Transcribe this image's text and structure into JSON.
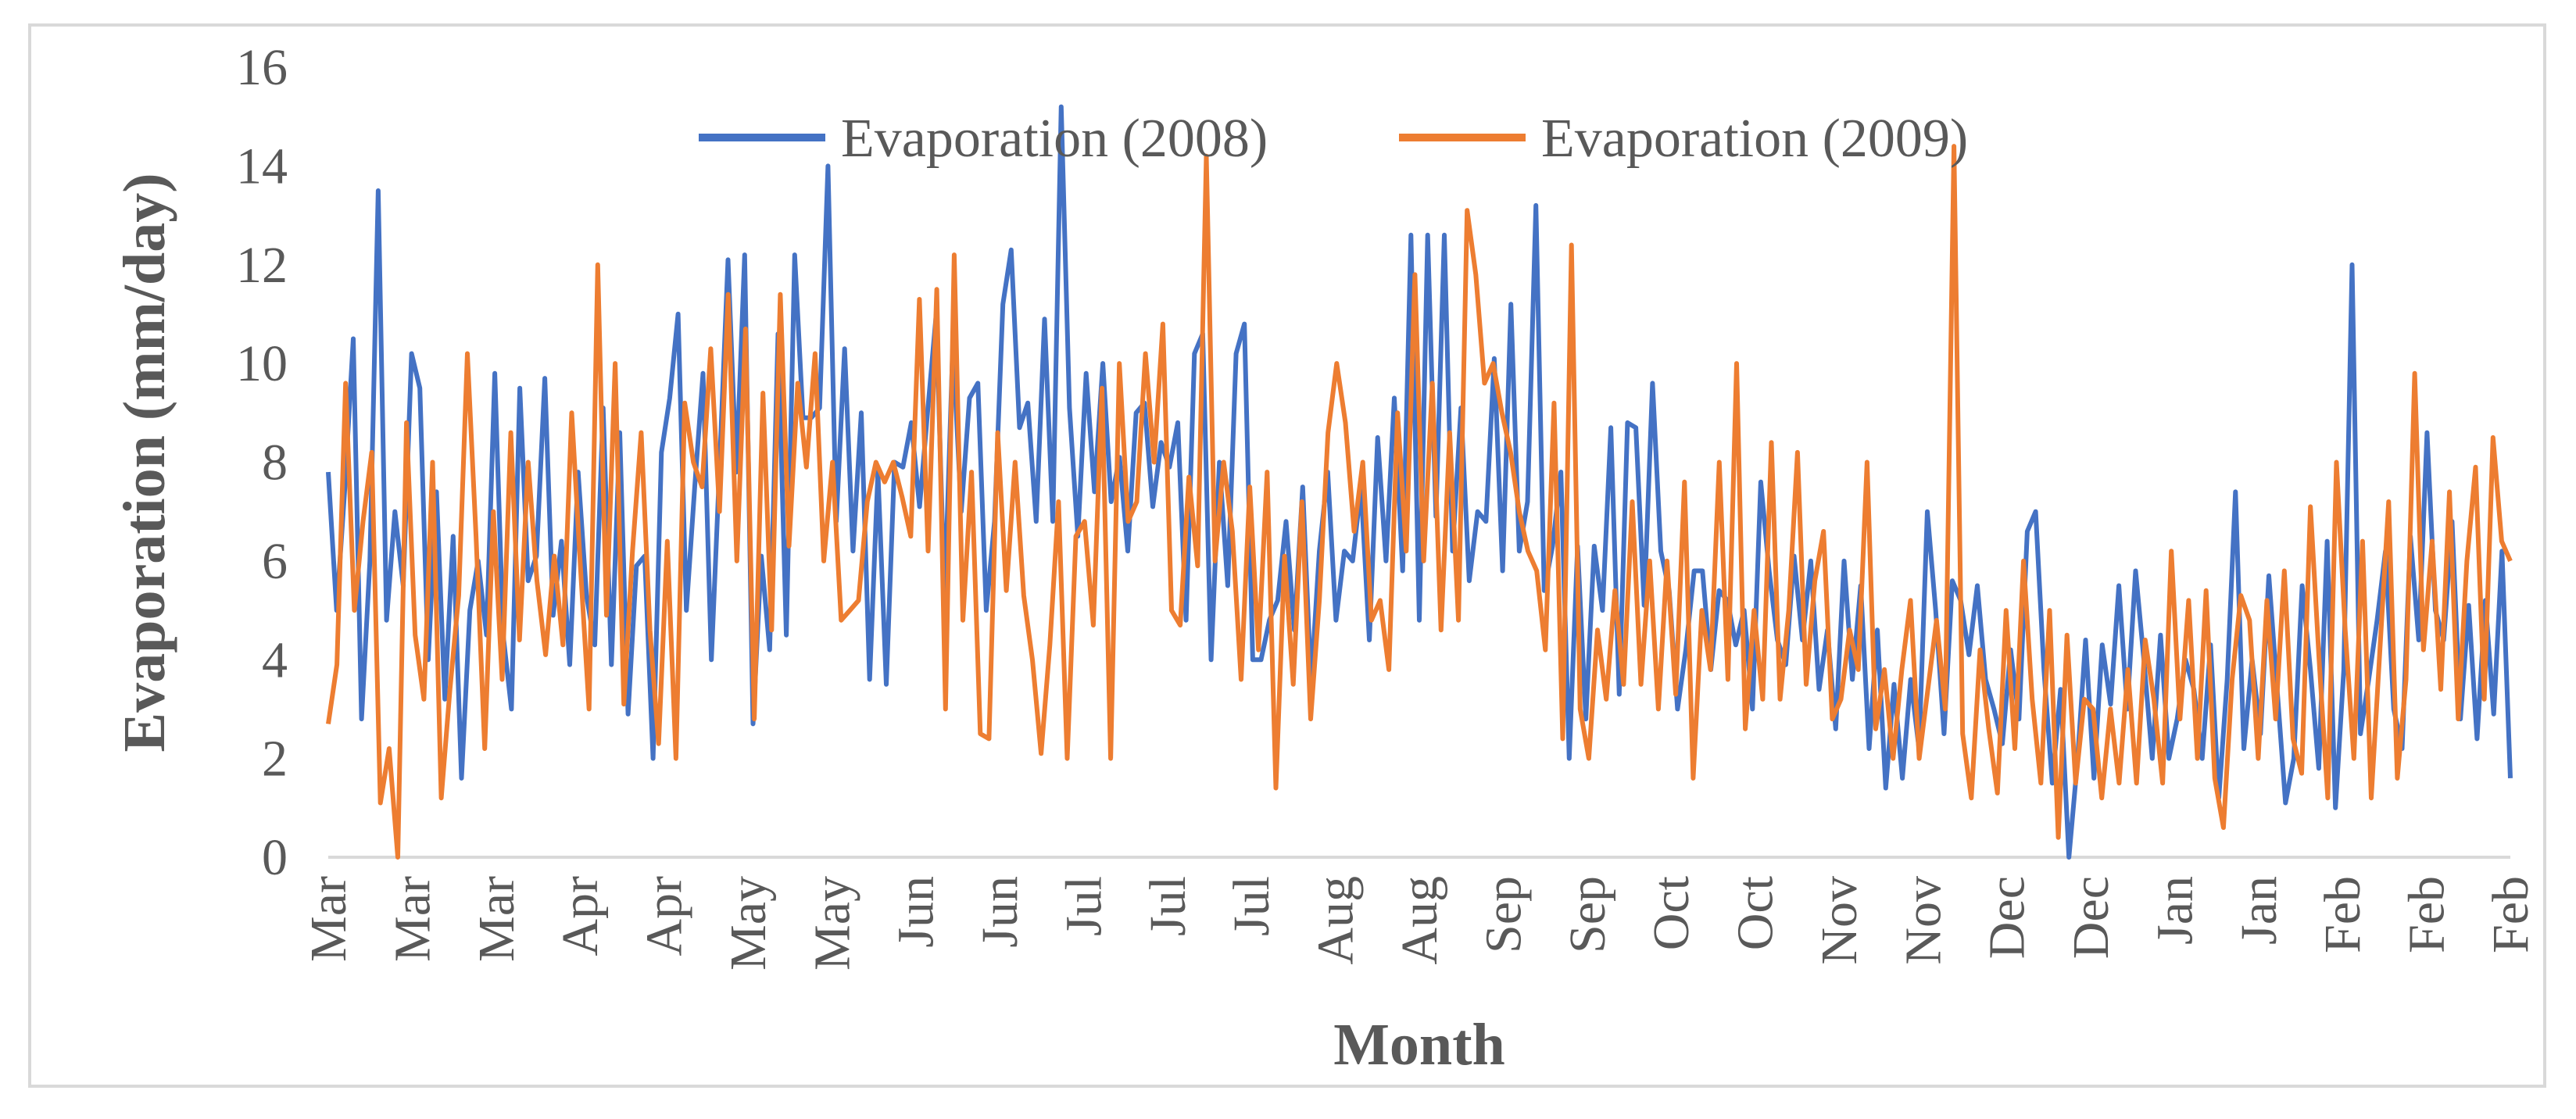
{
  "chart_data": {
    "type": "line",
    "title": "",
    "xlabel": "Month",
    "ylabel": "Evaporation (mm/day)",
    "ylim": [
      0,
      16
    ],
    "yticks": [
      0,
      2,
      4,
      6,
      8,
      10,
      12,
      14,
      16
    ],
    "grid": false,
    "legend_position": "top-center",
    "x_tick_labels": [
      "Mar",
      "Mar",
      "Mar",
      "Apr",
      "Apr",
      "May",
      "May",
      "Jun",
      "Jun",
      "Jul",
      "Jul",
      "Jul",
      "Aug",
      "Aug",
      "Sep",
      "Sep",
      "Oct",
      "Oct",
      "Nov",
      "Nov",
      "Dec",
      "Dec",
      "Jan",
      "Jan",
      "Feb",
      "Feb",
      "Feb"
    ],
    "x_day_range": [
      0,
      365
    ],
    "series": [
      {
        "name": "Evaporation (2008)",
        "color": "#4472c4",
        "values": [
          7.8,
          5.0,
          7.5,
          10.5,
          2.8,
          6.0,
          13.5,
          4.8,
          7.0,
          5.5,
          10.2,
          9.5,
          4.0,
          7.4,
          3.2,
          6.5,
          1.6,
          5.0,
          6.0,
          4.5,
          9.8,
          4.5,
          3.0,
          9.5,
          5.6,
          6.1,
          9.7,
          4.9,
          6.4,
          3.9,
          7.8,
          5.3,
          4.3,
          9.1,
          3.9,
          8.6,
          2.9,
          5.9,
          6.1,
          2.0,
          8.2,
          9.3,
          11.0,
          5.0,
          7.5,
          9.8,
          4.0,
          8.0,
          12.1,
          7.8,
          12.2,
          2.7,
          6.1,
          4.2,
          10.6,
          4.5,
          12.2,
          8.9,
          8.9,
          9.1,
          14.0,
          6.8,
          10.3,
          6.2,
          9.0,
          3.6,
          7.8,
          3.5,
          8.0,
          7.9,
          8.8,
          7.1,
          9.1,
          11.0,
          5.2,
          10.4,
          7.0,
          9.3,
          9.6,
          5.0,
          6.8,
          11.2,
          12.3,
          8.7,
          9.2,
          6.8,
          10.9,
          6.8,
          15.2,
          9.1,
          6.5,
          9.8,
          7.4,
          10.0,
          7.2,
          8.1,
          6.2,
          9.0,
          9.2,
          7.1,
          8.4,
          7.9,
          8.8,
          4.8,
          10.2,
          10.6,
          4.0,
          8.0,
          5.5,
          10.2,
          10.8,
          4.0,
          4.0,
          4.8,
          5.2,
          6.8,
          4.6,
          7.5,
          3.5,
          6.2,
          7.8,
          4.8,
          6.2,
          6.0,
          7.5,
          4.4,
          8.5,
          6.0,
          9.3,
          5.8,
          12.6,
          4.8,
          12.6,
          6.9,
          12.6,
          6.2,
          9.1,
          5.6,
          7.0,
          6.8,
          10.1,
          5.8,
          11.2,
          6.2,
          7.2,
          13.2,
          5.4,
          6.3,
          7.8,
          2.0,
          6.3,
          2.8,
          6.3,
          5.0,
          8.7,
          3.3,
          8.8,
          8.7,
          5.1,
          9.6,
          6.2,
          5.4,
          3.0,
          4.2,
          5.8,
          5.8,
          3.8,
          5.4,
          5.2,
          4.3,
          5.0,
          3.0,
          7.6,
          5.8,
          4.4,
          3.9,
          6.1,
          4.4,
          6.0,
          3.4,
          4.6,
          2.6,
          6.0,
          3.6,
          5.5,
          2.2,
          4.6,
          1.4,
          3.5,
          1.6,
          3.6,
          2.2,
          7.0,
          5.0,
          2.5,
          5.6,
          5.2,
          4.1,
          5.5,
          3.6,
          3.0,
          2.3,
          4.2,
          2.8,
          6.6,
          7.0,
          3.8,
          1.5,
          3.4,
          0.0,
          1.9,
          4.4,
          1.6,
          4.3,
          3.1,
          5.5,
          3.0,
          5.8,
          4.0,
          2.0,
          4.5,
          2.0,
          2.8,
          4.0,
          3.4,
          2.0,
          4.3,
          1.2,
          3.6,
          7.4,
          2.2,
          4.0,
          2.5,
          5.7,
          3.4,
          1.1,
          2.0,
          5.5,
          3.8,
          1.8,
          6.4,
          1.0,
          3.8,
          12.0,
          2.5,
          3.6,
          4.8,
          6.2,
          3.0,
          2.2,
          6.5,
          4.4,
          8.6,
          5.0,
          4.4,
          6.8,
          2.8,
          5.1,
          2.4,
          5.2,
          2.9,
          6.2,
          1.6
        ]
      },
      {
        "name": "Evaporation (2009)",
        "color": "#ed7d31",
        "values": [
          2.7,
          3.9,
          9.6,
          5.0,
          6.8,
          8.2,
          1.1,
          2.2,
          0.0,
          8.8,
          4.5,
          3.2,
          8.0,
          1.2,
          3.4,
          5.3,
          10.2,
          6.5,
          2.2,
          7.0,
          3.6,
          8.6,
          4.4,
          8.0,
          5.6,
          4.1,
          6.1,
          4.3,
          9.0,
          5.9,
          3.0,
          12.0,
          4.9,
          10.0,
          3.1,
          6.2,
          8.6,
          4.6,
          2.3,
          6.4,
          2.0,
          9.2,
          8.0,
          7.5,
          10.3,
          7.0,
          11.4,
          6.0,
          10.7,
          2.8,
          9.4,
          4.6,
          11.4,
          6.3,
          9.6,
          7.9,
          10.2,
          6.0,
          8.0,
          4.8,
          5.0,
          5.2,
          7.2,
          8.0,
          7.6,
          8.0,
          7.3,
          6.5,
          11.3,
          6.2,
          11.5,
          3.0,
          12.2,
          4.8,
          7.8,
          2.5,
          2.4,
          8.6,
          5.4,
          8.0,
          5.3,
          4.0,
          2.1,
          4.3,
          7.2,
          2.0,
          6.5,
          6.8,
          4.7,
          9.5,
          2.0,
          10.0,
          6.8,
          7.2,
          10.2,
          8.0,
          10.8,
          5.0,
          4.7,
          7.7,
          5.9,
          14.2,
          6.0,
          8.0,
          6.6,
          3.6,
          7.5,
          4.2,
          7.8,
          1.4,
          6.1,
          3.5,
          7.2,
          2.8,
          5.2,
          8.6,
          10.0,
          8.8,
          6.6,
          8.0,
          4.8,
          5.2,
          3.8,
          9.0,
          6.2,
          11.8,
          6.0,
          9.6,
          4.6,
          8.6,
          4.8,
          13.1,
          11.8,
          9.6,
          10.0,
          9.0,
          8.2,
          7.0,
          6.2,
          5.8,
          4.2,
          9.2,
          2.4,
          12.4,
          3.0,
          2.0,
          4.6,
          3.2,
          5.4,
          3.5,
          7.2,
          3.5,
          6.0,
          3.0,
          6.0,
          3.3,
          7.6,
          1.6,
          5.0,
          3.8,
          8.0,
          3.6,
          10.0,
          2.6,
          5.0,
          3.2,
          8.4,
          3.2,
          5.0,
          8.2,
          3.5,
          5.6,
          6.6,
          2.8,
          3.2,
          4.6,
          3.8,
          8.0,
          2.6,
          3.8,
          2.0,
          3.8,
          5.2,
          2.0,
          3.4,
          4.8,
          3.0,
          14.4,
          2.5,
          1.2,
          4.2,
          2.6,
          1.3,
          5.0,
          2.2,
          6.0,
          3.2,
          1.5,
          5.0,
          0.4,
          4.5,
          1.5,
          3.2,
          3.0,
          1.2,
          3.0,
          1.5,
          3.8,
          1.5,
          4.4,
          3.2,
          1.5,
          6.2,
          2.8,
          5.2,
          2.0,
          5.4,
          1.6,
          0.6,
          3.6,
          5.3,
          4.8,
          2.0,
          5.2,
          2.8,
          5.8,
          2.4,
          1.7,
          7.1,
          4.0,
          1.2,
          8.0,
          4.6,
          2.0,
          6.4,
          1.2,
          4.2,
          7.2,
          1.6,
          3.6,
          9.8,
          4.2,
          6.4,
          3.4,
          7.4,
          2.8,
          6.0,
          7.9,
          3.2,
          8.5,
          6.4,
          6.0
        ]
      }
    ]
  }
}
